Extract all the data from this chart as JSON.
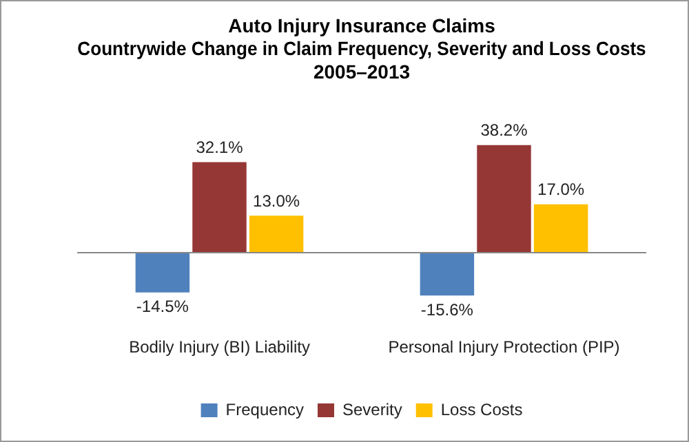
{
  "chart_data": {
    "type": "bar",
    "title": "Auto Injury Insurance Claims\nCountrywide Change in Claim Frequency, Severity and Loss Costs\n2005–2013",
    "categories": [
      "Bodily Injury (BI) Liability",
      "Personal Injury Protection (PIP)"
    ],
    "series": [
      {
        "name": "Frequency",
        "color": "#4f81bd",
        "values": [
          -14.5,
          -15.6
        ],
        "value_labels": [
          "-14.5%",
          "-15.6%"
        ]
      },
      {
        "name": "Severity",
        "color": "#953735",
        "values": [
          32.1,
          38.2
        ],
        "value_labels": [
          "32.1%",
          "38.2%"
        ]
      },
      {
        "name": "Loss Costs",
        "color": "#ffc000",
        "values": [
          13.0,
          17.0
        ],
        "value_labels": [
          "13.0%",
          "17.0%"
        ]
      }
    ],
    "tick_labels": "x",
    "legend": "bottom",
    "grid": false
  }
}
